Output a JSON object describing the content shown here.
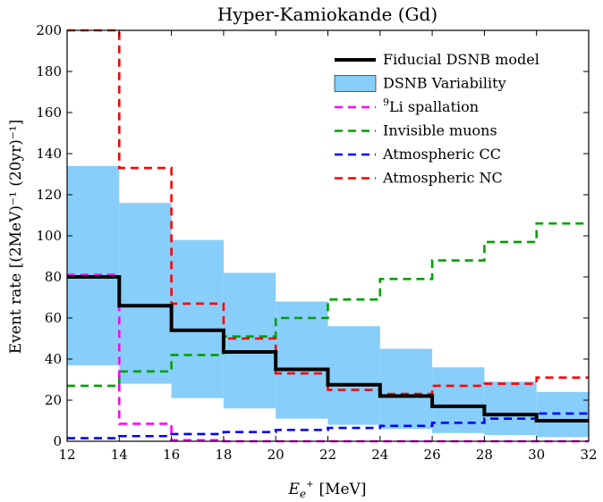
{
  "chart_data": {
    "type": "line",
    "title": "Hyper-Kamiokande (Gd)",
    "xlabel_main": "E",
    "xlabel_sub": "e",
    "xlabel_sup": "+",
    "xlabel_unit": "[MeV]",
    "ylabel": "Event rate [(2MeV)⁻¹ (20yr)⁻¹]",
    "xlim": [
      12,
      32
    ],
    "ylim": [
      0,
      200
    ],
    "xticks": [
      12,
      14,
      16,
      18,
      20,
      22,
      24,
      26,
      28,
      30,
      32
    ],
    "yticks": [
      0,
      20,
      40,
      60,
      80,
      100,
      120,
      140,
      160,
      180,
      200
    ],
    "bin_edges": [
      12,
      14,
      16,
      18,
      20,
      22,
      24,
      26,
      28,
      30,
      32
    ],
    "colors": {
      "variability": "#87cefa",
      "fiducial": "#000000",
      "li": "#ff00ff",
      "muons": "#00a000",
      "atm_cc": "#0000ff",
      "atm_nc": "#ff0000"
    },
    "variability_band": {
      "name": "DSNB Variability",
      "upper": [
        134,
        116,
        98,
        82,
        68,
        56,
        45,
        36,
        29,
        24
      ],
      "lower": [
        37,
        28,
        21,
        16,
        11,
        8,
        6,
        4,
        3,
        2
      ]
    },
    "series": [
      {
        "key": "muons",
        "name": "Invisible muons",
        "style": "dashed",
        "values": [
          27,
          34,
          42,
          51,
          60,
          69,
          79,
          88,
          97,
          106
        ]
      },
      {
        "key": "atm_cc",
        "name": "Atmospheric CC",
        "style": "dashed",
        "values": [
          1.5,
          2.5,
          3.5,
          4.5,
          5.5,
          6.5,
          7.5,
          9,
          11,
          13.5
        ]
      },
      {
        "key": "atm_nc",
        "name": "Atmospheric NC",
        "style": "dashed",
        "values": [
          200,
          133,
          67,
          50,
          33,
          25,
          23,
          27,
          28,
          31
        ]
      },
      {
        "key": "li",
        "name": "⁹Li spallation",
        "style": "dashed",
        "values": [
          81,
          8.5,
          0.5,
          0,
          0,
          0,
          0,
          0,
          0,
          0
        ]
      },
      {
        "key": "fiducial",
        "name": "Fiducial DSNB model",
        "style": "solid",
        "values": [
          80,
          66,
          54,
          43.5,
          35,
          27.5,
          22,
          17,
          13,
          10
        ]
      }
    ],
    "legend": [
      {
        "key": "fiducial",
        "label": "Fiducial DSNB model"
      },
      {
        "key": "variability",
        "label": "DSNB Variability"
      },
      {
        "key": "li",
        "label_sup": "9",
        "label": "Li spallation"
      },
      {
        "key": "muons",
        "label": "Invisible muons"
      },
      {
        "key": "atm_cc",
        "label": "Atmospheric CC"
      },
      {
        "key": "atm_nc",
        "label": "Atmospheric NC"
      }
    ],
    "legend_position": "top-right"
  }
}
